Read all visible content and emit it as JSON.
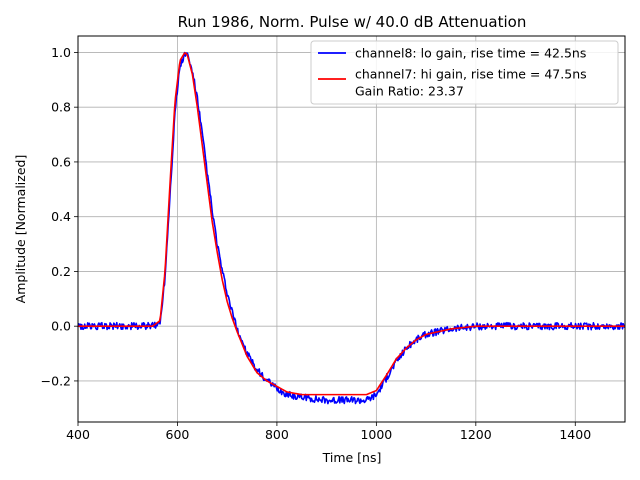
{
  "chart_data": {
    "type": "line",
    "title": "Run 1986, Norm. Pulse w/ 40.0 dB Attenuation",
    "xlabel": "Time [ns]",
    "ylabel": "Amplitude [Normalized]",
    "xlim": [
      400,
      1500
    ],
    "ylim": [
      -0.35,
      1.06
    ],
    "xticks": [
      400,
      600,
      800,
      1000,
      1200,
      1400
    ],
    "xtick_labels": [
      "400",
      "600",
      "800",
      "1000",
      "1200",
      "1400"
    ],
    "yticks": [
      -0.2,
      0.0,
      0.2,
      0.4,
      0.6,
      0.8,
      1.0
    ],
    "ytick_labels": [
      "−0.2",
      "0.0",
      "0.2",
      "0.4",
      "0.6",
      "0.8",
      "1.0"
    ],
    "grid": true,
    "legend_position": "top-right",
    "legend_extra_line": "Gain Ratio: 23.37",
    "series": [
      {
        "name": "channel8: lo gain, rise time = 42.5ns",
        "color": "#0000ff",
        "noisy": true,
        "x": [
          400,
          450,
          500,
          550,
          565,
          575,
          585,
          595,
          605,
          615,
          620,
          630,
          640,
          650,
          660,
          670,
          680,
          690,
          700,
          710,
          720,
          740,
          760,
          780,
          800,
          820,
          850,
          900,
          950,
          980,
          1000,
          1020,
          1040,
          1060,
          1080,
          1100,
          1150,
          1200,
          1250,
          1300,
          1400,
          1500
        ],
        "y": [
          0.0,
          0.0,
          0.0,
          0.0,
          0.01,
          0.18,
          0.48,
          0.78,
          0.95,
          0.995,
          0.99,
          0.93,
          0.83,
          0.7,
          0.56,
          0.42,
          0.3,
          0.2,
          0.12,
          0.05,
          -0.01,
          -0.1,
          -0.16,
          -0.2,
          -0.23,
          -0.25,
          -0.26,
          -0.27,
          -0.27,
          -0.27,
          -0.25,
          -0.19,
          -0.13,
          -0.08,
          -0.05,
          -0.03,
          -0.01,
          0.0,
          0.0,
          0.0,
          0.0,
          0.0
        ]
      },
      {
        "name": "channel7: hi gain, rise time = 47.5ns",
        "color": "#ff0000",
        "noisy": false,
        "x": [
          400,
          450,
          500,
          550,
          565,
          575,
          585,
          595,
          605,
          615,
          620,
          630,
          640,
          650,
          660,
          670,
          680,
          690,
          700,
          710,
          720,
          740,
          760,
          780,
          800,
          820,
          850,
          900,
          950,
          980,
          1000,
          1020,
          1040,
          1060,
          1080,
          1100,
          1150,
          1200,
          1250,
          1300,
          1400,
          1500
        ],
        "y": [
          0.0,
          0.0,
          0.0,
          0.0,
          0.02,
          0.2,
          0.52,
          0.82,
          0.97,
          1.0,
          0.99,
          0.92,
          0.8,
          0.66,
          0.52,
          0.38,
          0.27,
          0.17,
          0.09,
          0.03,
          -0.02,
          -0.11,
          -0.17,
          -0.2,
          -0.22,
          -0.24,
          -0.25,
          -0.25,
          -0.25,
          -0.25,
          -0.235,
          -0.18,
          -0.12,
          -0.08,
          -0.05,
          -0.03,
          -0.01,
          0.0,
          0.0,
          0.0,
          0.0,
          0.0
        ]
      }
    ]
  }
}
